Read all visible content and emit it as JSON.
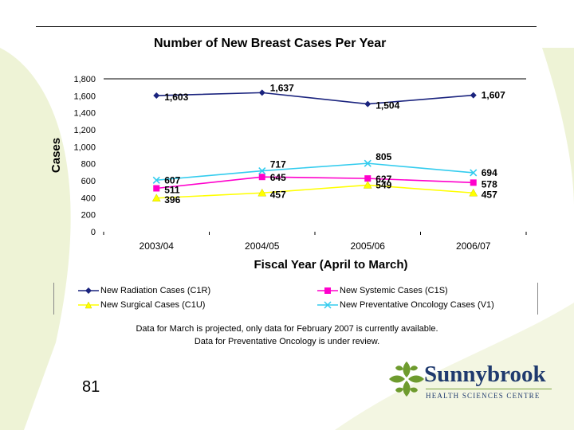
{
  "slide": {
    "page_number": "81",
    "notes": [
      "Data for March is projected, only data for February 2007 is currently available.",
      "Data for Preventative Oncology is under review."
    ],
    "logo": {
      "name": "Sunnybrook",
      "subtitle": "HEALTH SCIENCES CENTRE"
    }
  },
  "colors": {
    "radiation": "#1a237e",
    "systemic": "#ff00cc",
    "surgical": "#ffff00",
    "preventative": "#33ccee",
    "logo_green": "#6e9b2e",
    "logo_blue": "#1f3a6e"
  },
  "chart_data": {
    "type": "line",
    "title": "Number of New Breast Cases Per Year",
    "xlabel": "Fiscal Year (April to March)",
    "ylabel": "Cases",
    "categories": [
      "2003/04",
      "2004/05",
      "2005/06",
      "2006/07"
    ],
    "ylim": [
      0,
      1800
    ],
    "yticks": [
      "0",
      "200",
      "400",
      "600",
      "800",
      "1,000",
      "1,200",
      "1,400",
      "1,600",
      "1,800"
    ],
    "legend_position": "bottom",
    "series": [
      {
        "name": "New Radiation Cases (C1R)",
        "key": "radiation",
        "marker": "diamond",
        "values": [
          1603,
          1637,
          1504,
          1607
        ],
        "labels": [
          "1,603",
          "1,637",
          "1,504",
          "1,607"
        ]
      },
      {
        "name": "New Systemic Cases (C1S)",
        "key": "systemic",
        "marker": "square",
        "values": [
          511,
          645,
          627,
          578
        ],
        "labels": [
          "511",
          "645",
          "627",
          "578"
        ]
      },
      {
        "name": "New Surgical Cases (C1U)",
        "key": "surgical",
        "marker": "triangle",
        "values": [
          396,
          457,
          549,
          457
        ],
        "labels": [
          "396",
          "457",
          "549",
          "457"
        ]
      },
      {
        "name": "New Preventative Oncology Cases (V1)",
        "key": "preventative",
        "marker": "x",
        "values": [
          607,
          717,
          805,
          694
        ],
        "labels": [
          "607",
          "717",
          "805",
          "694"
        ]
      }
    ]
  }
}
